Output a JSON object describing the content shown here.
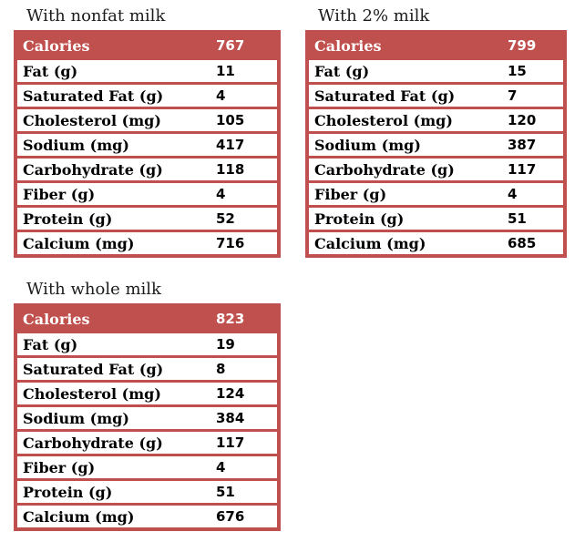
{
  "colors": {
    "accent_red": "#c0504d",
    "header_text": "#ffffff",
    "row_text": "#000000",
    "row_bg": "#ffffff",
    "page_bg": "#ffffff"
  },
  "tables": [
    {
      "title": "With nonfat milk",
      "header": {
        "label": "Calories",
        "value": "767"
      },
      "rows": [
        {
          "label": "Fat (g)",
          "value": "11"
        },
        {
          "label": "Saturated Fat (g)",
          "value": "4"
        },
        {
          "label": "Cholesterol (mg)",
          "value": "105"
        },
        {
          "label": "Sodium (mg)",
          "value": "417"
        },
        {
          "label": "Carbohydrate (g)",
          "value": "118"
        },
        {
          "label": "Fiber (g)",
          "value": "4"
        },
        {
          "label": "Protein (g)",
          "value": "52"
        },
        {
          "label": "Calcium (mg)",
          "value": "716"
        }
      ]
    },
    {
      "title": "With 2% milk",
      "header": {
        "label": "Calories",
        "value": "799"
      },
      "rows": [
        {
          "label": "Fat (g)",
          "value": "15"
        },
        {
          "label": "Saturated Fat (g)",
          "value": "7"
        },
        {
          "label": "Cholesterol (mg)",
          "value": "120"
        },
        {
          "label": "Sodium (mg)",
          "value": "387"
        },
        {
          "label": "Carbohydrate (g)",
          "value": "117"
        },
        {
          "label": "Fiber (g)",
          "value": "4"
        },
        {
          "label": "Protein (g)",
          "value": "51"
        },
        {
          "label": "Calcium (mg)",
          "value": "685"
        }
      ]
    },
    {
      "title": "With whole milk",
      "header": {
        "label": "Calories",
        "value": "823"
      },
      "rows": [
        {
          "label": "Fat (g)",
          "value": "19"
        },
        {
          "label": "Saturated Fat (g)",
          "value": "8"
        },
        {
          "label": "Cholesterol (mg)",
          "value": "124"
        },
        {
          "label": "Sodium (mg)",
          "value": "384"
        },
        {
          "label": "Carbohydrate (g)",
          "value": "117"
        },
        {
          "label": "Fiber (g)",
          "value": "4"
        },
        {
          "label": "Protein (g)",
          "value": "51"
        },
        {
          "label": "Calcium (mg)",
          "value": "676"
        }
      ]
    }
  ]
}
